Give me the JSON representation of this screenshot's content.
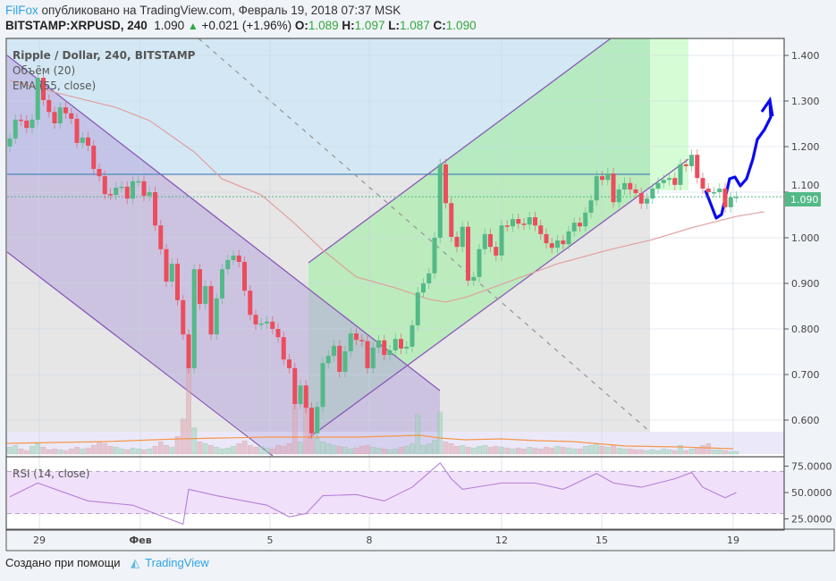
{
  "header": {
    "author": "FilFox",
    "published_text": "опубликовано на TradingView.com, Февраль 19, 2018 07:37 MSK",
    "symbol": "BITSTAMP:XRPUSD, 240",
    "last": "1.090",
    "change": "+0.021 (+1.96%)",
    "o_label": "O:",
    "o": "1.089",
    "h_label": "H:",
    "h": "1.097",
    "l_label": "L:",
    "l": "1.087",
    "c_label": "C:",
    "c": "1.090"
  },
  "legend": {
    "title": "Ripple / Dollar, 240, BITSTAMP",
    "volume": "Объём (20)",
    "ema": "EMA (55, close)",
    "rsi": "RSI (14, close)"
  },
  "footer": {
    "created_with": "Создано при помощи",
    "brand": "TradingView"
  },
  "colors": {
    "up": "#53b987",
    "down": "#eb4d5c",
    "ema": "#e0a0a0",
    "rsi": "#b67fd6",
    "drawing": "#0a0af0",
    "last_price": "#53b987"
  },
  "chart_data": {
    "type": "candlestick",
    "ylim": [
      0.53,
      1.445
    ],
    "price_ticks": [
      "1.400",
      "1.300",
      "1.200",
      "1.100",
      "1.000",
      "0.900",
      "0.800",
      "0.700",
      "0.600"
    ],
    "last_price_label": "1.090",
    "x_tick_labels": [
      "29",
      "Фев",
      "5",
      "8",
      "12",
      "15",
      "19"
    ],
    "rsi_ticks": [
      "75.0000",
      "50.0000",
      "25.0000"
    ],
    "rsi_bands": [
      70,
      30
    ],
    "close": [
      1.218,
      1.259,
      1.257,
      1.241,
      1.259,
      1.351,
      1.302,
      1.276,
      1.251,
      1.286,
      1.273,
      1.261,
      1.208,
      1.22,
      1.202,
      1.151,
      1.135,
      1.096,
      1.094,
      1.11,
      1.112,
      1.086,
      1.124,
      1.124,
      1.092,
      1.1,
      1.027,
      0.975,
      0.904,
      0.943,
      0.863,
      0.788,
      0.714,
      0.931,
      0.855,
      0.894,
      0.788,
      0.867,
      0.931,
      0.951,
      0.961,
      0.947,
      0.884,
      0.831,
      0.81,
      0.812,
      0.816,
      0.8,
      0.782,
      0.733,
      0.714,
      0.635,
      0.676,
      0.627,
      0.571,
      0.629,
      0.725,
      0.741,
      0.763,
      0.706,
      0.751,
      0.79,
      0.776,
      0.773,
      0.714,
      0.759,
      0.775,
      0.743,
      0.753,
      0.778,
      0.757,
      0.761,
      0.808,
      0.88,
      0.9,
      0.922,
      1.0,
      1.161,
      1.076,
      1.002,
      0.98,
      1.024,
      0.906,
      0.914,
      0.975,
      1.008,
      0.98,
      0.961,
      1.027,
      1.025,
      1.041,
      1.031,
      1.029,
      1.045,
      1.027,
      1.008,
      0.988,
      0.978,
      0.994,
      0.986,
      1.014,
      1.033,
      1.025,
      1.055,
      1.082,
      1.135,
      1.127,
      1.141,
      1.078,
      1.106,
      1.12,
      1.106,
      1.098,
      1.075,
      1.086,
      1.108,
      1.12,
      1.127,
      1.131,
      1.116,
      1.161,
      1.157,
      1.182,
      1.131,
      1.108,
      1.1,
      1.1,
      1.108,
      1.067,
      1.089,
      1.09
    ],
    "first_open": 1.2,
    "volume_relative": [
      8,
      10,
      6,
      4,
      9,
      12,
      8,
      5,
      6,
      5,
      4,
      6,
      8,
      6,
      7,
      10,
      14,
      12,
      9,
      8,
      6,
      5,
      7,
      6,
      5,
      6,
      9,
      14,
      10,
      8,
      20,
      40,
      100,
      30,
      14,
      12,
      10,
      8,
      6,
      7,
      9,
      12,
      15,
      10,
      8,
      9,
      7,
      6,
      10,
      9,
      12,
      55,
      14,
      60,
      26,
      18,
      14,
      12,
      10,
      9,
      8,
      6,
      7,
      9,
      10,
      8,
      7,
      6,
      5,
      6,
      8,
      9,
      12,
      45,
      10,
      12,
      16,
      48,
      14,
      12,
      9,
      10,
      8,
      7,
      9,
      10,
      8,
      9,
      8,
      7,
      6,
      7,
      6,
      8,
      7,
      6,
      8,
      7,
      9,
      8,
      7,
      6,
      6,
      9,
      10,
      12,
      9,
      8,
      10,
      7,
      6,
      6,
      5,
      5,
      4,
      5,
      4,
      6,
      5,
      4,
      10,
      4,
      6,
      7,
      10,
      12,
      5,
      5,
      4,
      3,
      3
    ],
    "ema55": [
      [
        0,
        1.345
      ],
      [
        9,
        1.316
      ],
      [
        19,
        1.286
      ],
      [
        25,
        1.257
      ],
      [
        33,
        1.188
      ],
      [
        38,
        1.129
      ],
      [
        45,
        1.094
      ],
      [
        51,
        1.031
      ],
      [
        56,
        0.973
      ],
      [
        62,
        0.914
      ],
      [
        69,
        0.89
      ],
      [
        75,
        0.865
      ],
      [
        78,
        0.859
      ],
      [
        82,
        0.871
      ],
      [
        88,
        0.898
      ],
      [
        98,
        0.943
      ],
      [
        107,
        0.973
      ],
      [
        115,
        0.996
      ],
      [
        122,
        1.022
      ],
      [
        130,
        1.047
      ],
      [
        135,
        1.057
      ]
    ],
    "rsi": [
      [
        0,
        46
      ],
      [
        5,
        59
      ],
      [
        14,
        42
      ],
      [
        22,
        38
      ],
      [
        31,
        20
      ],
      [
        32,
        53
      ],
      [
        37,
        47
      ],
      [
        46,
        38
      ],
      [
        50,
        27
      ],
      [
        53,
        30
      ],
      [
        56,
        47
      ],
      [
        62,
        48
      ],
      [
        67,
        42
      ],
      [
        72,
        55
      ],
      [
        77,
        78
      ],
      [
        79,
        63
      ],
      [
        81,
        53
      ],
      [
        88,
        59
      ],
      [
        94,
        59
      ],
      [
        99,
        53
      ],
      [
        105,
        68
      ],
      [
        108,
        59
      ],
      [
        113,
        55
      ],
      [
        119,
        63
      ],
      [
        122,
        69
      ],
      [
        124,
        55
      ],
      [
        128,
        45
      ],
      [
        130,
        50
      ]
    ]
  }
}
